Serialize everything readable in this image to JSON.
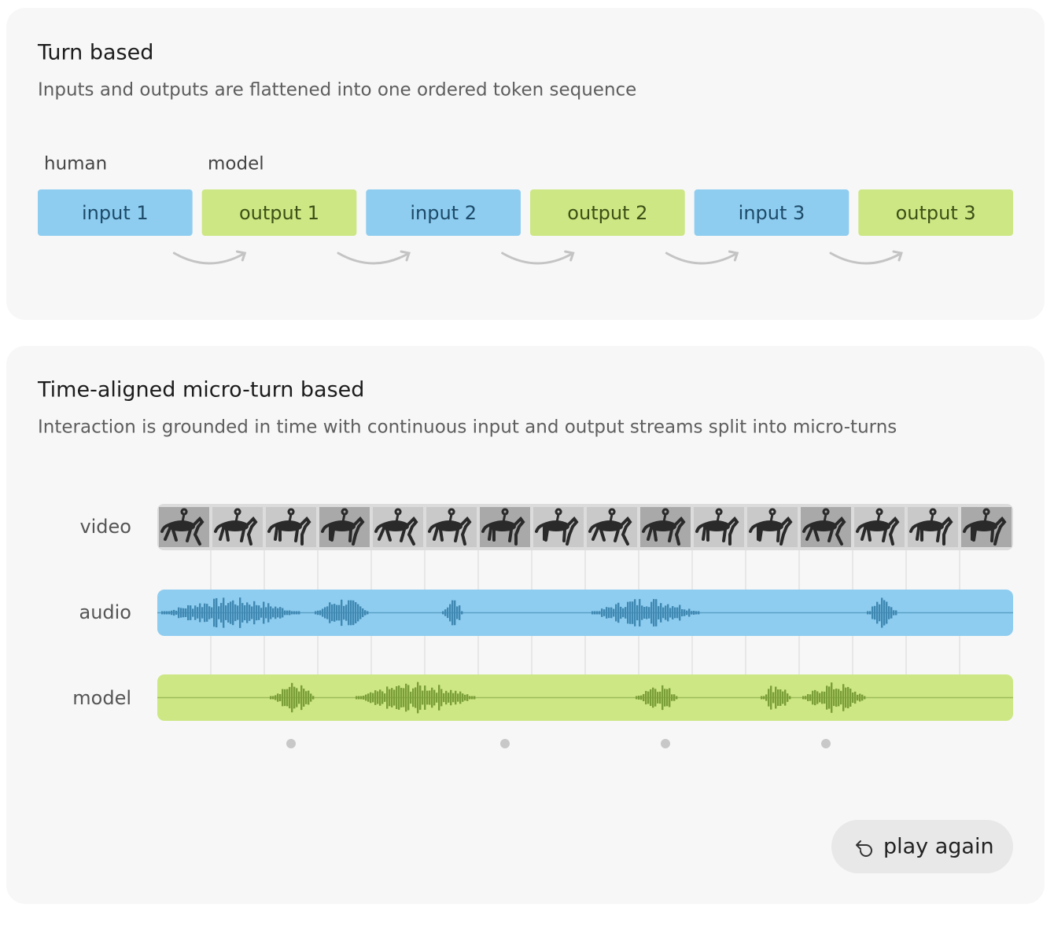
{
  "turn_based": {
    "title": "Turn based",
    "subtitle": "Inputs and outputs are flattened into one ordered token sequence",
    "roles": [
      "human",
      "model"
    ],
    "sequence": [
      "input 1",
      "output 1",
      "input 2",
      "output 2",
      "input 3",
      "output 3"
    ]
  },
  "micro_turn": {
    "title": "Time-aligned micro-turn based",
    "subtitle": "Interaction is grounded in time with continuous input and output streams split into micro-turns",
    "rows": [
      "video",
      "audio",
      "model"
    ]
  },
  "button": {
    "label": "play again"
  }
}
